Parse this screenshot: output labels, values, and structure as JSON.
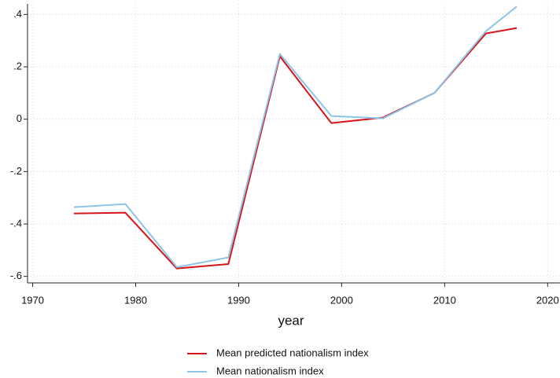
{
  "chart_data": {
    "type": "line",
    "x": [
      1974,
      1979,
      1984,
      1989,
      1994,
      1999,
      2004,
      2009,
      2014,
      2017
    ],
    "series": [
      {
        "name": "Mean predicted nationalism index",
        "color": "#d7141a",
        "values": [
          -0.36,
          -0.357,
          -0.57,
          -0.553,
          0.24,
          -0.015,
          0.006,
          0.1,
          0.327,
          0.348
        ]
      },
      {
        "name": "Mean nationalism index",
        "color": "#8ec4e6",
        "values": [
          -0.336,
          -0.324,
          -0.565,
          -0.528,
          0.249,
          0.012,
          0.003,
          0.1,
          0.336,
          0.43
        ]
      }
    ],
    "x_label": "year",
    "xlim": [
      1969.5,
      2021.2
    ],
    "xticks": [
      1970,
      1980,
      1990,
      2000,
      2010,
      2020
    ],
    "ylim": [
      -0.625,
      0.44
    ],
    "yticks": [
      {
        "value": -0.6,
        "label": "-.6"
      },
      {
        "value": -0.4,
        "label": "-.4"
      },
      {
        "value": -0.2,
        "label": "-.2"
      },
      0,
      {
        "value": 0.2,
        "label": ".2"
      },
      {
        "value": 0.4,
        "label": ".4"
      }
    ],
    "grid": true,
    "legend": "bottom"
  }
}
